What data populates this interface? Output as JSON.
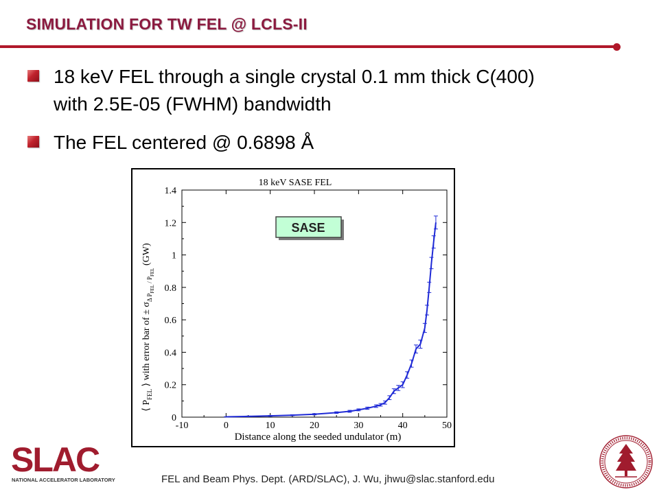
{
  "slide": {
    "title": "SIMULATION FOR TW FEL @ LCLS-II",
    "bullets": [
      {
        "line1": "18 keV FEL through a single crystal 0.1 mm thick C(400)",
        "line2": "with 2.5E-05 (FWHM) bandwidth"
      },
      {
        "line1": "The FEL centered @ 0.6898 Å"
      }
    ],
    "footer": "FEL and Beam Phys. Dept. (ARD/SLAC), J. Wu, jhwu@slac.stanford.edu",
    "logo_text": "SLAC",
    "logo_subtext": "NATIONAL ACCELERATOR LABORATORY"
  },
  "colors": {
    "accent": "#b0182a",
    "title": "#8b1a3f",
    "series": "#1f2ad6"
  },
  "icons": [
    "bullet-square-icon",
    "slac-logo-icon",
    "stanford-seal-icon"
  ],
  "chart_data": {
    "type": "line",
    "title": "18 keV SASE FEL",
    "xlabel": "Distance along the seeded undulator (m)",
    "ylabel_main": "⟨ P",
    "ylabel_sub": "FEL",
    "ylabel_rest": " ⟩ with error bar of ± σ",
    "ylabel_sigma_sub": "Δ P",
    "ylabel_sigma_sub2": "FEL",
    "ylabel_ratio": " / P",
    "ylabel_ratio_sub": "FEL",
    "ylabel_unit": " (GW)",
    "xlim": [
      -10,
      50
    ],
    "ylim": [
      0,
      1.4
    ],
    "xticks": [
      -10,
      0,
      10,
      20,
      30,
      40,
      50
    ],
    "yticks": [
      0,
      0.2,
      0.4,
      0.6,
      0.8,
      1,
      1.2,
      1.4
    ],
    "ytick_labels": [
      "0",
      "0.2",
      "0.4",
      "0.6",
      "0.8",
      "1",
      "1.2",
      "1.4"
    ],
    "xtick_labels": [
      "-10",
      "0",
      "10",
      "20",
      "30",
      "40",
      "50"
    ],
    "annotation": "SASE",
    "series": [
      {
        "x": [
          0,
          5,
          10,
          15,
          20,
          25,
          28,
          30,
          32,
          34,
          35,
          36,
          37,
          38,
          39,
          40,
          41,
          42,
          43,
          44,
          45,
          45.5,
          46,
          46.5,
          47,
          47.5
        ],
        "y": [
          0.002,
          0.005,
          0.008,
          0.012,
          0.018,
          0.028,
          0.036,
          0.045,
          0.055,
          0.068,
          0.076,
          0.09,
          0.12,
          0.16,
          0.18,
          0.2,
          0.26,
          0.33,
          0.42,
          0.45,
          0.55,
          0.66,
          0.8,
          0.95,
          1.08,
          1.2
        ],
        "err": [
          0.001,
          0.002,
          0.003,
          0.003,
          0.004,
          0.005,
          0.006,
          0.006,
          0.007,
          0.008,
          0.008,
          0.01,
          0.012,
          0.015,
          0.016,
          0.018,
          0.02,
          0.022,
          0.025,
          0.025,
          0.028,
          0.03,
          0.032,
          0.035,
          0.038,
          0.04
        ]
      }
    ]
  }
}
